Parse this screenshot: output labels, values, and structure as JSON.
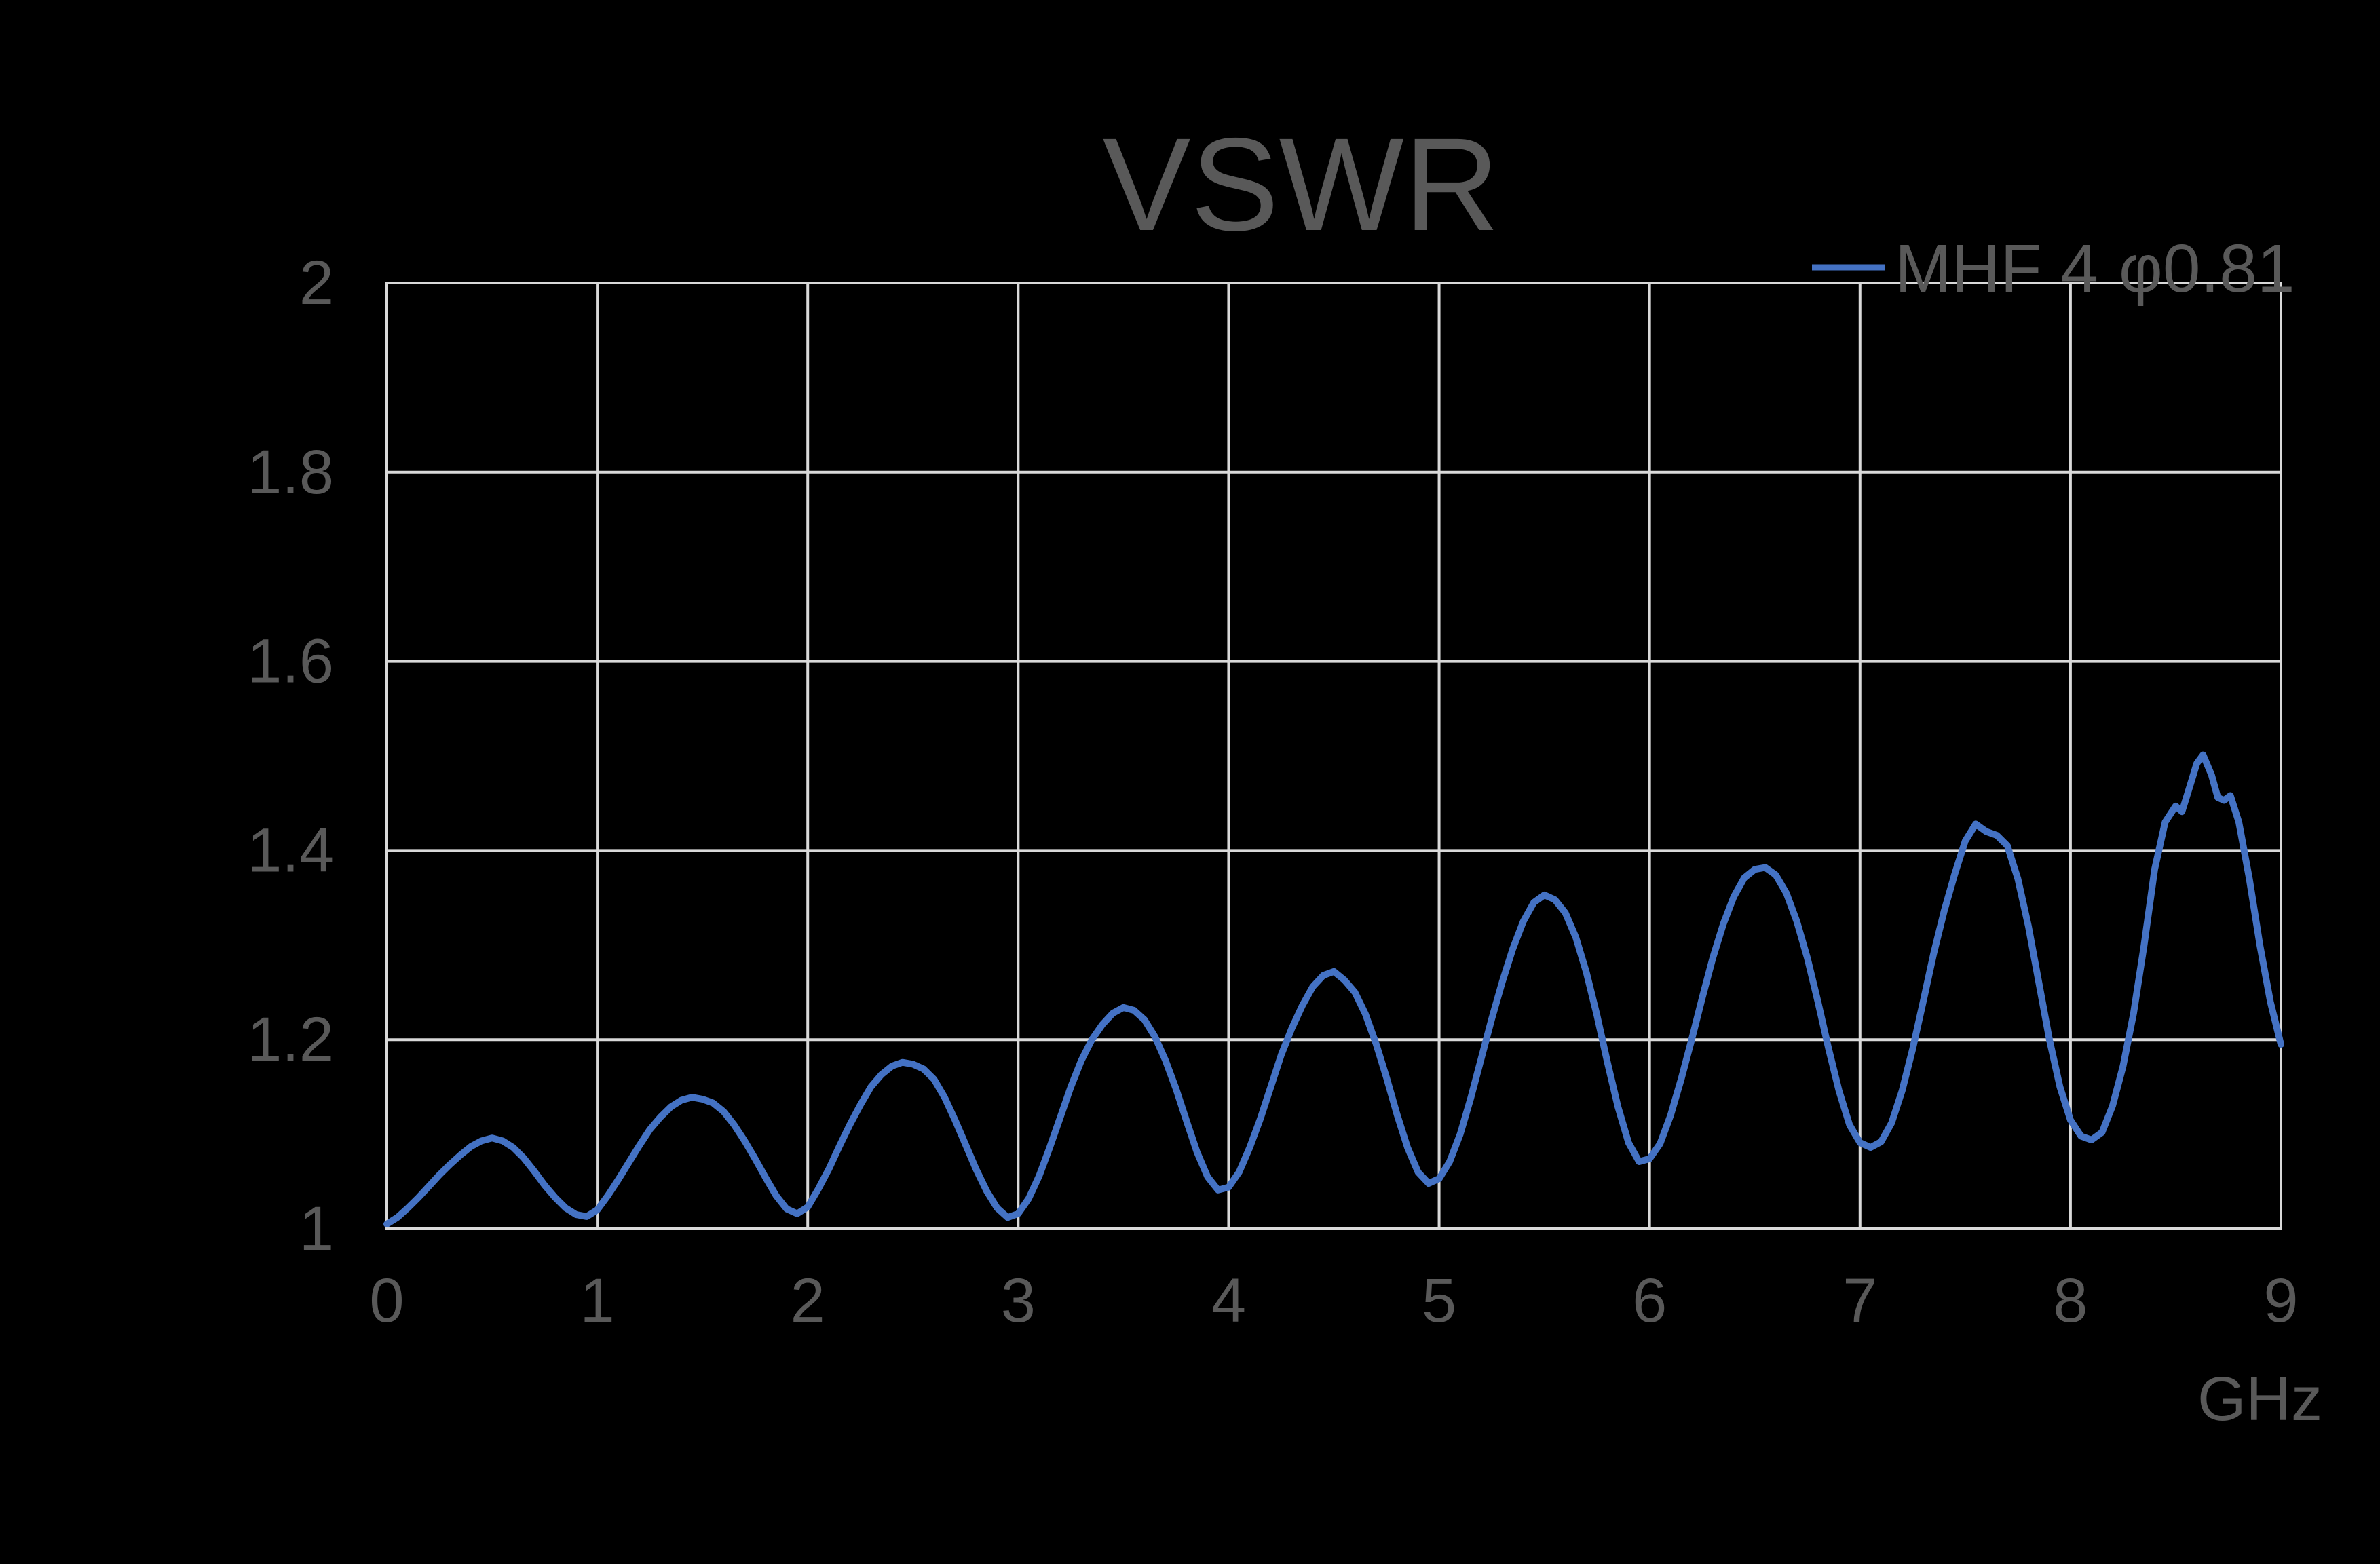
{
  "title": "VSWR",
  "legend": {
    "series_label": "MHF 4",
    "phase_label": "φ0.81"
  },
  "axes": {
    "x": {
      "ticks": [
        "0",
        "1",
        "2",
        "3",
        "4",
        "5",
        "6",
        "7",
        "8",
        "9"
      ],
      "unit": "GHz"
    },
    "y": {
      "ticks": [
        "1",
        "1.2",
        "1.4",
        "1.6",
        "1.8",
        "2"
      ]
    }
  },
  "colors": {
    "background": "#000000",
    "grid": "#D9D9D9",
    "text": "#595959",
    "series": "#4472C4"
  },
  "chart_data": {
    "type": "line",
    "title": "VSWR",
    "xlabel": "GHz",
    "ylabel": "",
    "xlim": [
      0,
      9
    ],
    "ylim": [
      1,
      2
    ],
    "x_ticks": [
      0,
      1,
      2,
      3,
      4,
      5,
      6,
      7,
      8,
      9
    ],
    "y_ticks": [
      1,
      1.2,
      1.4,
      1.6,
      1.8,
      2
    ],
    "grid": true,
    "legend_position": "top-right",
    "series": [
      {
        "name": "MHF 4 φ0.81",
        "color": "#4472C4",
        "points": [
          [
            0,
            1.005
          ],
          [
            0.05,
            1.012
          ],
          [
            0.1,
            1.022
          ],
          [
            0.15,
            1.033
          ],
          [
            0.2,
            1.045
          ],
          [
            0.25,
            1.057
          ],
          [
            0.3,
            1.068
          ],
          [
            0.35,
            1.078
          ],
          [
            0.4,
            1.087
          ],
          [
            0.45,
            1.093
          ],
          [
            0.5,
            1.096
          ],
          [
            0.55,
            1.093
          ],
          [
            0.6,
            1.086
          ],
          [
            0.65,
            1.075
          ],
          [
            0.7,
            1.061
          ],
          [
            0.75,
            1.046
          ],
          [
            0.8,
            1.033
          ],
          [
            0.85,
            1.022
          ],
          [
            0.9,
            1.015
          ],
          [
            0.95,
            1.013
          ],
          [
            1,
            1.02
          ],
          [
            1.05,
            1.035
          ],
          [
            1.1,
            1.052
          ],
          [
            1.15,
            1.07
          ],
          [
            1.2,
            1.088
          ],
          [
            1.25,
            1.105
          ],
          [
            1.3,
            1.118
          ],
          [
            1.35,
            1.129
          ],
          [
            1.4,
            1.136
          ],
          [
            1.45,
            1.139
          ],
          [
            1.5,
            1.137
          ],
          [
            1.55,
            1.133
          ],
          [
            1.6,
            1.124
          ],
          [
            1.65,
            1.11
          ],
          [
            1.7,
            1.093
          ],
          [
            1.75,
            1.074
          ],
          [
            1.8,
            1.054
          ],
          [
            1.85,
            1.035
          ],
          [
            1.9,
            1.021
          ],
          [
            1.95,
            1.016
          ],
          [
            2,
            1.023
          ],
          [
            2.05,
            1.042
          ],
          [
            2.1,
            1.063
          ],
          [
            2.15,
            1.087
          ],
          [
            2.2,
            1.11
          ],
          [
            2.25,
            1.131
          ],
          [
            2.3,
            1.15
          ],
          [
            2.35,
            1.163
          ],
          [
            2.4,
            1.172
          ],
          [
            2.45,
            1.176
          ],
          [
            2.5,
            1.174
          ],
          [
            2.55,
            1.169
          ],
          [
            2.6,
            1.158
          ],
          [
            2.65,
            1.139
          ],
          [
            2.7,
            1.115
          ],
          [
            2.75,
            1.089
          ],
          [
            2.8,
            1.063
          ],
          [
            2.85,
            1.04
          ],
          [
            2.9,
            1.022
          ],
          [
            2.95,
            1.012
          ],
          [
            3,
            1.016
          ],
          [
            3.05,
            1.032
          ],
          [
            3.1,
            1.056
          ],
          [
            3.15,
            1.086
          ],
          [
            3.2,
            1.118
          ],
          [
            3.25,
            1.15
          ],
          [
            3.3,
            1.178
          ],
          [
            3.35,
            1.2
          ],
          [
            3.4,
            1.216
          ],
          [
            3.45,
            1.228
          ],
          [
            3.5,
            1.234
          ],
          [
            3.55,
            1.231
          ],
          [
            3.6,
            1.221
          ],
          [
            3.65,
            1.203
          ],
          [
            3.7,
            1.178
          ],
          [
            3.75,
            1.148
          ],
          [
            3.8,
            1.114
          ],
          [
            3.85,
            1.081
          ],
          [
            3.9,
            1.055
          ],
          [
            3.95,
            1.041
          ],
          [
            4,
            1.044
          ],
          [
            4.05,
            1.06
          ],
          [
            4.1,
            1.086
          ],
          [
            4.15,
            1.116
          ],
          [
            4.2,
            1.15
          ],
          [
            4.25,
            1.184
          ],
          [
            4.3,
            1.212
          ],
          [
            4.35,
            1.236
          ],
          [
            4.4,
            1.256
          ],
          [
            4.45,
            1.268
          ],
          [
            4.5,
            1.272
          ],
          [
            4.55,
            1.263
          ],
          [
            4.6,
            1.25
          ],
          [
            4.65,
            1.227
          ],
          [
            4.7,
            1.196
          ],
          [
            4.75,
            1.16
          ],
          [
            4.8,
            1.121
          ],
          [
            4.85,
            1.086
          ],
          [
            4.9,
            1.06
          ],
          [
            4.95,
            1.048
          ],
          [
            5,
            1.053
          ],
          [
            5.05,
            1.071
          ],
          [
            5.1,
            1.1
          ],
          [
            5.15,
            1.138
          ],
          [
            5.2,
            1.18
          ],
          [
            5.25,
            1.222
          ],
          [
            5.3,
            1.261
          ],
          [
            5.35,
            1.296
          ],
          [
            5.4,
            1.325
          ],
          [
            5.45,
            1.345
          ],
          [
            5.5,
            1.353
          ],
          [
            5.55,
            1.348
          ],
          [
            5.6,
            1.334
          ],
          [
            5.65,
            1.308
          ],
          [
            5.7,
            1.271
          ],
          [
            5.75,
            1.226
          ],
          [
            5.8,
            1.176
          ],
          [
            5.85,
            1.129
          ],
          [
            5.9,
            1.091
          ],
          [
            5.95,
            1.071
          ],
          [
            6,
            1.074
          ],
          [
            6.05,
            1.09
          ],
          [
            6.1,
            1.12
          ],
          [
            6.15,
            1.158
          ],
          [
            6.2,
            1.2
          ],
          [
            6.25,
            1.244
          ],
          [
            6.3,
            1.286
          ],
          [
            6.35,
            1.322
          ],
          [
            6.4,
            1.351
          ],
          [
            6.45,
            1.371
          ],
          [
            6.5,
            1.38
          ],
          [
            6.55,
            1.382
          ],
          [
            6.6,
            1.374
          ],
          [
            6.65,
            1.355
          ],
          [
            6.7,
            1.325
          ],
          [
            6.75,
            1.286
          ],
          [
            6.8,
            1.24
          ],
          [
            6.85,
            1.191
          ],
          [
            6.9,
            1.146
          ],
          [
            6.95,
            1.11
          ],
          [
            7,
            1.091
          ],
          [
            7.05,
            1.086
          ],
          [
            7.1,
            1.092
          ],
          [
            7.15,
            1.112
          ],
          [
            7.2,
            1.146
          ],
          [
            7.25,
            1.19
          ],
          [
            7.3,
            1.24
          ],
          [
            7.35,
            1.291
          ],
          [
            7.4,
            1.336
          ],
          [
            7.45,
            1.375
          ],
          [
            7.5,
            1.41
          ],
          [
            7.55,
            1.428
          ],
          [
            7.6,
            1.42
          ],
          [
            7.65,
            1.416
          ],
          [
            7.7,
            1.405
          ],
          [
            7.75,
            1.37
          ],
          [
            7.8,
            1.32
          ],
          [
            7.85,
            1.26
          ],
          [
            7.9,
            1.2
          ],
          [
            7.95,
            1.15
          ],
          [
            8,
            1.115
          ],
          [
            8.05,
            1.098
          ],
          [
            8.1,
            1.094
          ],
          [
            8.15,
            1.102
          ],
          [
            8.2,
            1.13
          ],
          [
            8.25,
            1.172
          ],
          [
            8.3,
            1.228
          ],
          [
            8.35,
            1.3
          ],
          [
            8.4,
            1.38
          ],
          [
            8.45,
            1.43
          ],
          [
            8.5,
            1.447
          ],
          [
            8.53,
            1.441
          ],
          [
            8.57,
            1.47
          ],
          [
            8.6,
            1.492
          ],
          [
            8.63,
            1.501
          ],
          [
            8.67,
            1.48
          ],
          [
            8.7,
            1.456
          ],
          [
            8.73,
            1.453
          ],
          [
            8.76,
            1.458
          ],
          [
            8.8,
            1.43
          ],
          [
            8.85,
            1.37
          ],
          [
            8.9,
            1.3
          ],
          [
            8.95,
            1.24
          ],
          [
            9,
            1.195
          ]
        ]
      }
    ]
  }
}
